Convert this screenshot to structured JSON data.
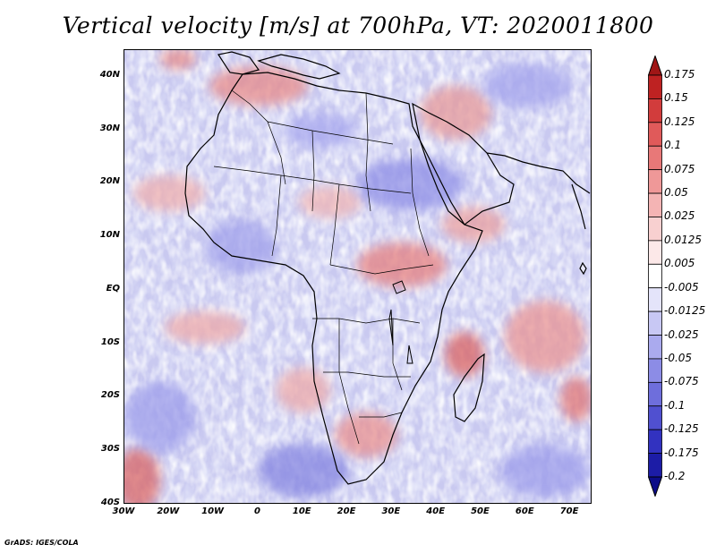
{
  "title": "Vertical velocity [m/s] at 700hPa, VT: 2020011800",
  "credit": "GrADS: IGES/COLA",
  "map": {
    "lon_range": [
      -30,
      75
    ],
    "lat_range": [
      -40,
      45
    ],
    "lat_labels": [
      {
        "lat": 40,
        "text": "40N"
      },
      {
        "lat": 30,
        "text": "30N"
      },
      {
        "lat": 20,
        "text": "20N"
      },
      {
        "lat": 10,
        "text": "10N"
      },
      {
        "lat": 0,
        "text": "EQ"
      },
      {
        "lat": -10,
        "text": "10S"
      },
      {
        "lat": -20,
        "text": "20S"
      },
      {
        "lat": -30,
        "text": "30S"
      },
      {
        "lat": -40,
        "text": "40S"
      }
    ],
    "lon_labels": [
      {
        "lon": -30,
        "text": "30W"
      },
      {
        "lon": -20,
        "text": "20W"
      },
      {
        "lon": -10,
        "text": "10W"
      },
      {
        "lon": 0,
        "text": "0"
      },
      {
        "lon": 10,
        "text": "10E"
      },
      {
        "lon": 20,
        "text": "20E"
      },
      {
        "lon": 30,
        "text": "30E"
      },
      {
        "lon": 40,
        "text": "40E"
      },
      {
        "lon": 50,
        "text": "50E"
      },
      {
        "lon": 60,
        "text": "60E"
      },
      {
        "lon": 70,
        "text": "70E"
      }
    ]
  },
  "colorbar": {
    "labels": [
      "0.175",
      "0.15",
      "0.125",
      "0.1",
      "0.075",
      "0.05",
      "0.025",
      "0.0125",
      "0.005",
      "-0.005",
      "-0.0125",
      "-0.025",
      "-0.05",
      "-0.075",
      "-0.1",
      "-0.125",
      "-0.175",
      "-0.2"
    ],
    "colors": [
      "#a01616",
      "#be2222",
      "#d23c3c",
      "#e05a5a",
      "#e87878",
      "#ef9898",
      "#f4b4b4",
      "#f8d0d0",
      "#fce8e8",
      "#ffffff",
      "#e4e4fa",
      "#c8c8f4",
      "#aaaaee",
      "#8c8ce6",
      "#6e6edc",
      "#5050d0",
      "#3232c0",
      "#1c1ca6",
      "#0c0c88"
    ]
  }
}
